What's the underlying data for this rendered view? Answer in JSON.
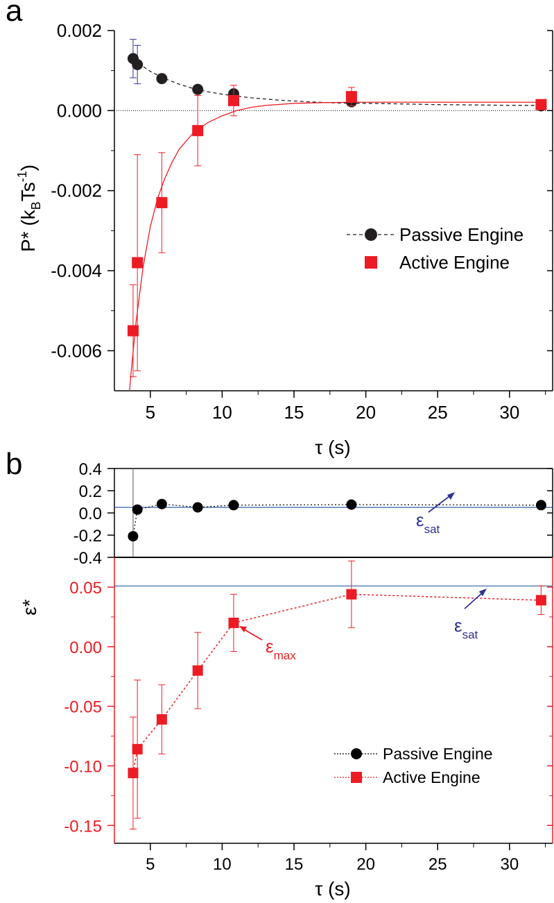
{
  "panels": {
    "a": {
      "label": "a"
    },
    "b": {
      "label": "b"
    }
  },
  "chart_data": [
    {
      "panel": "a",
      "type": "scatter",
      "xlabel": "τ (s)",
      "ylabel_main": "P* (k",
      "ylabel_sub": "B",
      "ylabel_mid": "Ts",
      "ylabel_sup": "-1",
      "ylabel_end": ")",
      "xlim": [
        2.5,
        33
      ],
      "ylim": [
        -0.007,
        0.002
      ],
      "xticks": [
        5,
        10,
        15,
        20,
        25,
        30
      ],
      "xtick_labels": [
        "5",
        "10",
        "15",
        "20",
        "25",
        "30"
      ],
      "yticks": [
        0.002,
        0.0,
        -0.002,
        -0.004,
        -0.006
      ],
      "ytick_labels": [
        "0.002",
        "0.000",
        "-0.002",
        "-0.004",
        "-0.006"
      ],
      "reference_line_y": 0,
      "legend_position": "center-right",
      "series": [
        {
          "name": "Passive Engine",
          "marker": "circle",
          "color": "#231f20",
          "error_color": "#2e3192",
          "x": [
            3.8,
            4.1,
            5.8,
            8.3,
            10.8,
            19.0,
            32.2
          ],
          "y": [
            0.0013,
            0.00115,
            0.0008,
            0.00053,
            0.00042,
            0.00022,
            0.00012
          ],
          "err": [
            0.00048,
            0.00048,
            0.0,
            0.0,
            0.0,
            0.0,
            0.0
          ],
          "fit": "dashed",
          "fit_x": [
            3.5,
            4,
            5,
            6,
            7,
            8,
            9,
            10,
            11,
            12,
            14,
            16,
            18,
            20,
            22,
            25,
            28,
            30,
            32.5
          ],
          "fit_y": [
            0.00138,
            0.00122,
            0.00098,
            0.0008,
            0.00066,
            0.00055,
            0.00047,
            0.00041,
            0.00036,
            0.00032,
            0.00026,
            0.00022,
            0.00019,
            0.00018,
            0.00017,
            0.00015,
            0.00014,
            0.00013,
            0.00013
          ]
        },
        {
          "name": "Active Engine",
          "marker": "square",
          "color": "#ed1c24",
          "error_color": "#ed1c24",
          "x": [
            3.8,
            4.1,
            5.8,
            8.3,
            10.8,
            19.0,
            32.2
          ],
          "y": [
            -0.0055,
            -0.0038,
            -0.0023,
            -0.0005,
            0.00025,
            0.00035,
            0.00015
          ],
          "err": [
            0.00115,
            0.0027,
            0.00125,
            0.00088,
            0.00038,
            0.00023,
            8e-05
          ],
          "fit": "solid",
          "fit_x": [
            3.5,
            3.7,
            4.0,
            4.5,
            5.0,
            5.5,
            6.0,
            6.5,
            7,
            8,
            9,
            10,
            11,
            12,
            13,
            15,
            17,
            20,
            25,
            32.5
          ],
          "fit_y": [
            -0.0072,
            -0.0064,
            -0.0053,
            -0.0039,
            -0.0029,
            -0.0022,
            -0.0017,
            -0.0013,
            -0.00097,
            -0.00055,
            -0.0003,
            -0.00013,
            0.0,
            8e-05,
            0.00013,
            0.00018,
            0.0002,
            0.00021,
            0.00021,
            0.00021
          ]
        }
      ]
    },
    {
      "panel": "b-top",
      "type": "scatter",
      "xlim": [
        2.5,
        33
      ],
      "ylim": [
        -0.4,
        0.4
      ],
      "yticks": [
        0.4,
        0.2,
        0.0,
        -0.2,
        -0.4
      ],
      "ytick_labels": [
        "0.4",
        "0.2",
        "0.0",
        "-0.2",
        "-0.4"
      ],
      "hline": {
        "y": 0.05,
        "color": "#2e5fa3"
      },
      "vline": {
        "x": 3.8
      },
      "annotation": {
        "text": "ε",
        "sub": "sat",
        "color": "#2e3192"
      },
      "series": [
        {
          "name": "Passive Engine",
          "marker": "circle",
          "color": "#000000",
          "x": [
            3.8,
            4.1,
            5.8,
            8.3,
            10.8,
            19.0,
            32.2
          ],
          "y": [
            -0.21,
            0.03,
            0.08,
            0.05,
            0.07,
            0.075,
            0.07
          ]
        }
      ]
    },
    {
      "panel": "b-bottom",
      "type": "scatter",
      "xlabel": "τ (s)",
      "ylabel": "ε*",
      "xlim": [
        2.5,
        33
      ],
      "ylim": [
        -0.165,
        0.075
      ],
      "xticks": [
        5,
        10,
        15,
        20,
        25,
        30
      ],
      "xtick_labels": [
        "5",
        "10",
        "15",
        "20",
        "25",
        "30"
      ],
      "yticks": [
        0.05,
        0.0,
        -0.05,
        -0.1,
        -0.15
      ],
      "ytick_labels": [
        "0.05",
        "0.00",
        "-0.05",
        "-0.10",
        "-0.15"
      ],
      "axis_color": "#ed1c24",
      "hline": {
        "y": 0.051,
        "color": "#2e5fa3"
      },
      "annotations": [
        {
          "text": "ε",
          "sub": "max",
          "color": "#ed1c24"
        },
        {
          "text": "ε",
          "sub": "sat",
          "color": "#2e3192"
        }
      ],
      "legend_position": "bottom-right",
      "series": [
        {
          "name": "Passive Engine",
          "marker": "circle",
          "color": "#000000",
          "line": "dotted"
        },
        {
          "name": "Active Engine",
          "marker": "square",
          "color": "#ed1c24",
          "line": "dotted",
          "x": [
            3.8,
            4.1,
            5.8,
            8.3,
            10.8,
            19.0,
            32.2
          ],
          "y": [
            -0.106,
            -0.086,
            -0.061,
            -0.02,
            0.02,
            0.044,
            0.039
          ],
          "err": [
            0.047,
            0.058,
            0.029,
            0.032,
            0.024,
            0.028,
            0.012
          ]
        }
      ]
    }
  ]
}
